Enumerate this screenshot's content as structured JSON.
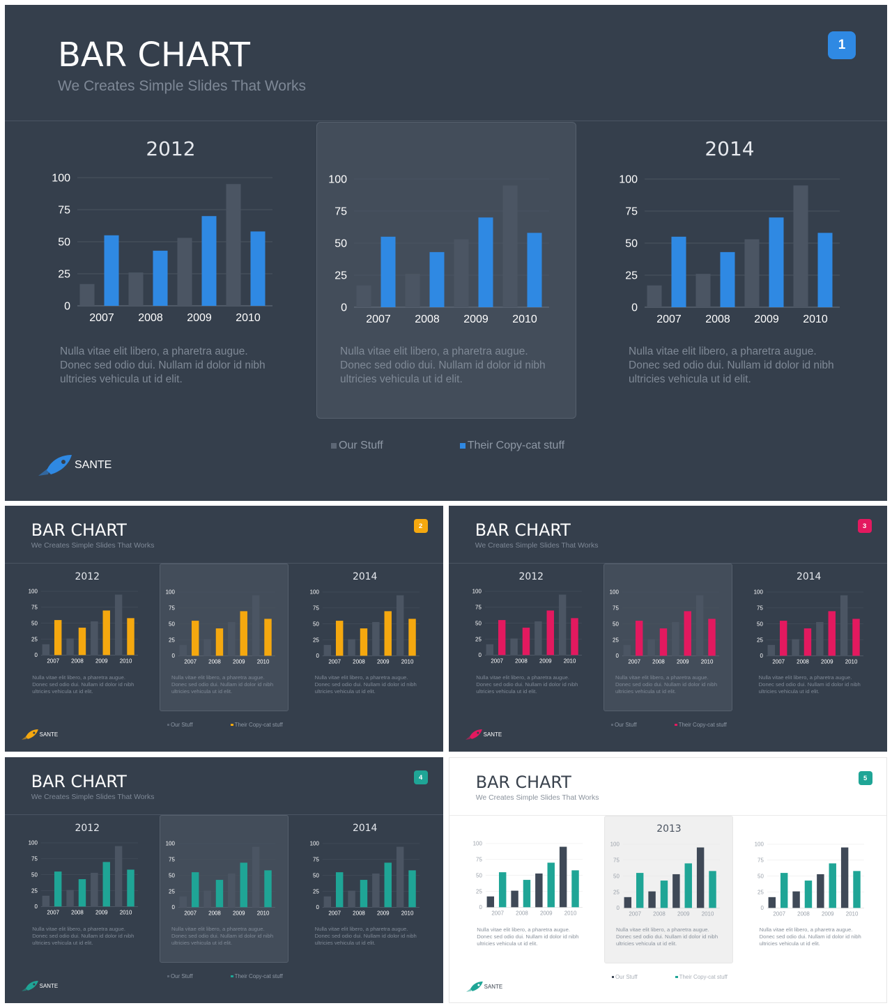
{
  "colors": {
    "our_stuff_dark": "#4b5563",
    "blue": "#2f89e3",
    "orange": "#f5a80f",
    "pink": "#e3195f",
    "teal": "#1fa596",
    "badge_blue": "#2f89e3",
    "badge_orange": "#f5a80f",
    "badge_pink": "#e3195f",
    "badge_teal": "#1fa596"
  },
  "slides": [
    {
      "title": "BAR CHART",
      "subtitle": "We Creates Simple Slides That Works",
      "page_number": "1",
      "accent": "blue",
      "panel_titles": [
        "2012",
        "",
        "2014"
      ],
      "description": "Nulla vitae elit libero, a pharetra augue. Donec sed odio dui. Nullam id dolor id nibh ultricies vehicula ut id elit.",
      "legend": [
        "Our Stuff",
        "Their Copy-cat stuff"
      ],
      "logo_text": "SANTE"
    },
    {
      "title": "BAR CHART",
      "subtitle": "We Creates Simple Slides That Works",
      "page_number": "2",
      "accent": "orange",
      "panel_titles": [
        "2012",
        "",
        "2014"
      ],
      "description": "Nulla vitae elit libero, a pharetra augue. Donec sed odio dui. Nullam id dolor id nibh ultricies vehicula ut id elit.",
      "legend": [
        "Our Stuff",
        "Their Copy-cat stuff"
      ],
      "logo_text": "SANTE"
    },
    {
      "title": "BAR CHART",
      "subtitle": "We Creates Simple Slides That Works",
      "page_number": "3",
      "accent": "pink",
      "panel_titles": [
        "2012",
        "",
        "2014"
      ],
      "description": "Nulla vitae elit libero, a pharetra augue. Donec sed odio dui. Nullam id dolor id nibh ultricies vehicula ut id elit.",
      "legend": [
        "Our Stuff",
        "Their Copy-cat stuff"
      ],
      "logo_text": "SANTE"
    },
    {
      "title": "BAR CHART",
      "subtitle": "We Creates Simple Slides That Works",
      "page_number": "4",
      "accent": "teal",
      "panel_titles": [
        "2012",
        "",
        "2014"
      ],
      "description": "Nulla vitae elit libero, a pharetra augue. Donec sed odio dui. Nullam id dolor id nibh ultricies vehicula ut id elit.",
      "legend": [
        "Our Stuff",
        "Their Copy-cat stuff"
      ],
      "logo_text": "SANTE"
    },
    {
      "title": "BAR CHART",
      "subtitle": "We Creates Simple Slides That Works",
      "page_number": "5",
      "accent": "teal",
      "panel_titles": [
        "",
        "2013",
        ""
      ],
      "description": "Nulla vitae elit libero, a pharetra augue. Donec sed odio dui. Nullam id dolor id nibh ultricies vehicula ut id elit.",
      "legend": [
        "Our Stuff",
        "Their Copy-cat stuff"
      ],
      "logo_text": "SANTE"
    }
  ],
  "chart_data": {
    "type": "bar",
    "categories": [
      "2007",
      "2008",
      "2009",
      "2010"
    ],
    "series": [
      {
        "name": "Our Stuff",
        "values": [
          17,
          26,
          53,
          95
        ]
      },
      {
        "name": "Their Copy-cat stuff",
        "values": [
          55,
          43,
          70,
          58
        ]
      }
    ],
    "ylim": [
      0,
      100
    ],
    "yticks": [
      0,
      25,
      50,
      75,
      100
    ],
    "grid": true,
    "legend_position": "bottom",
    "xlabel": "",
    "ylabel": ""
  }
}
